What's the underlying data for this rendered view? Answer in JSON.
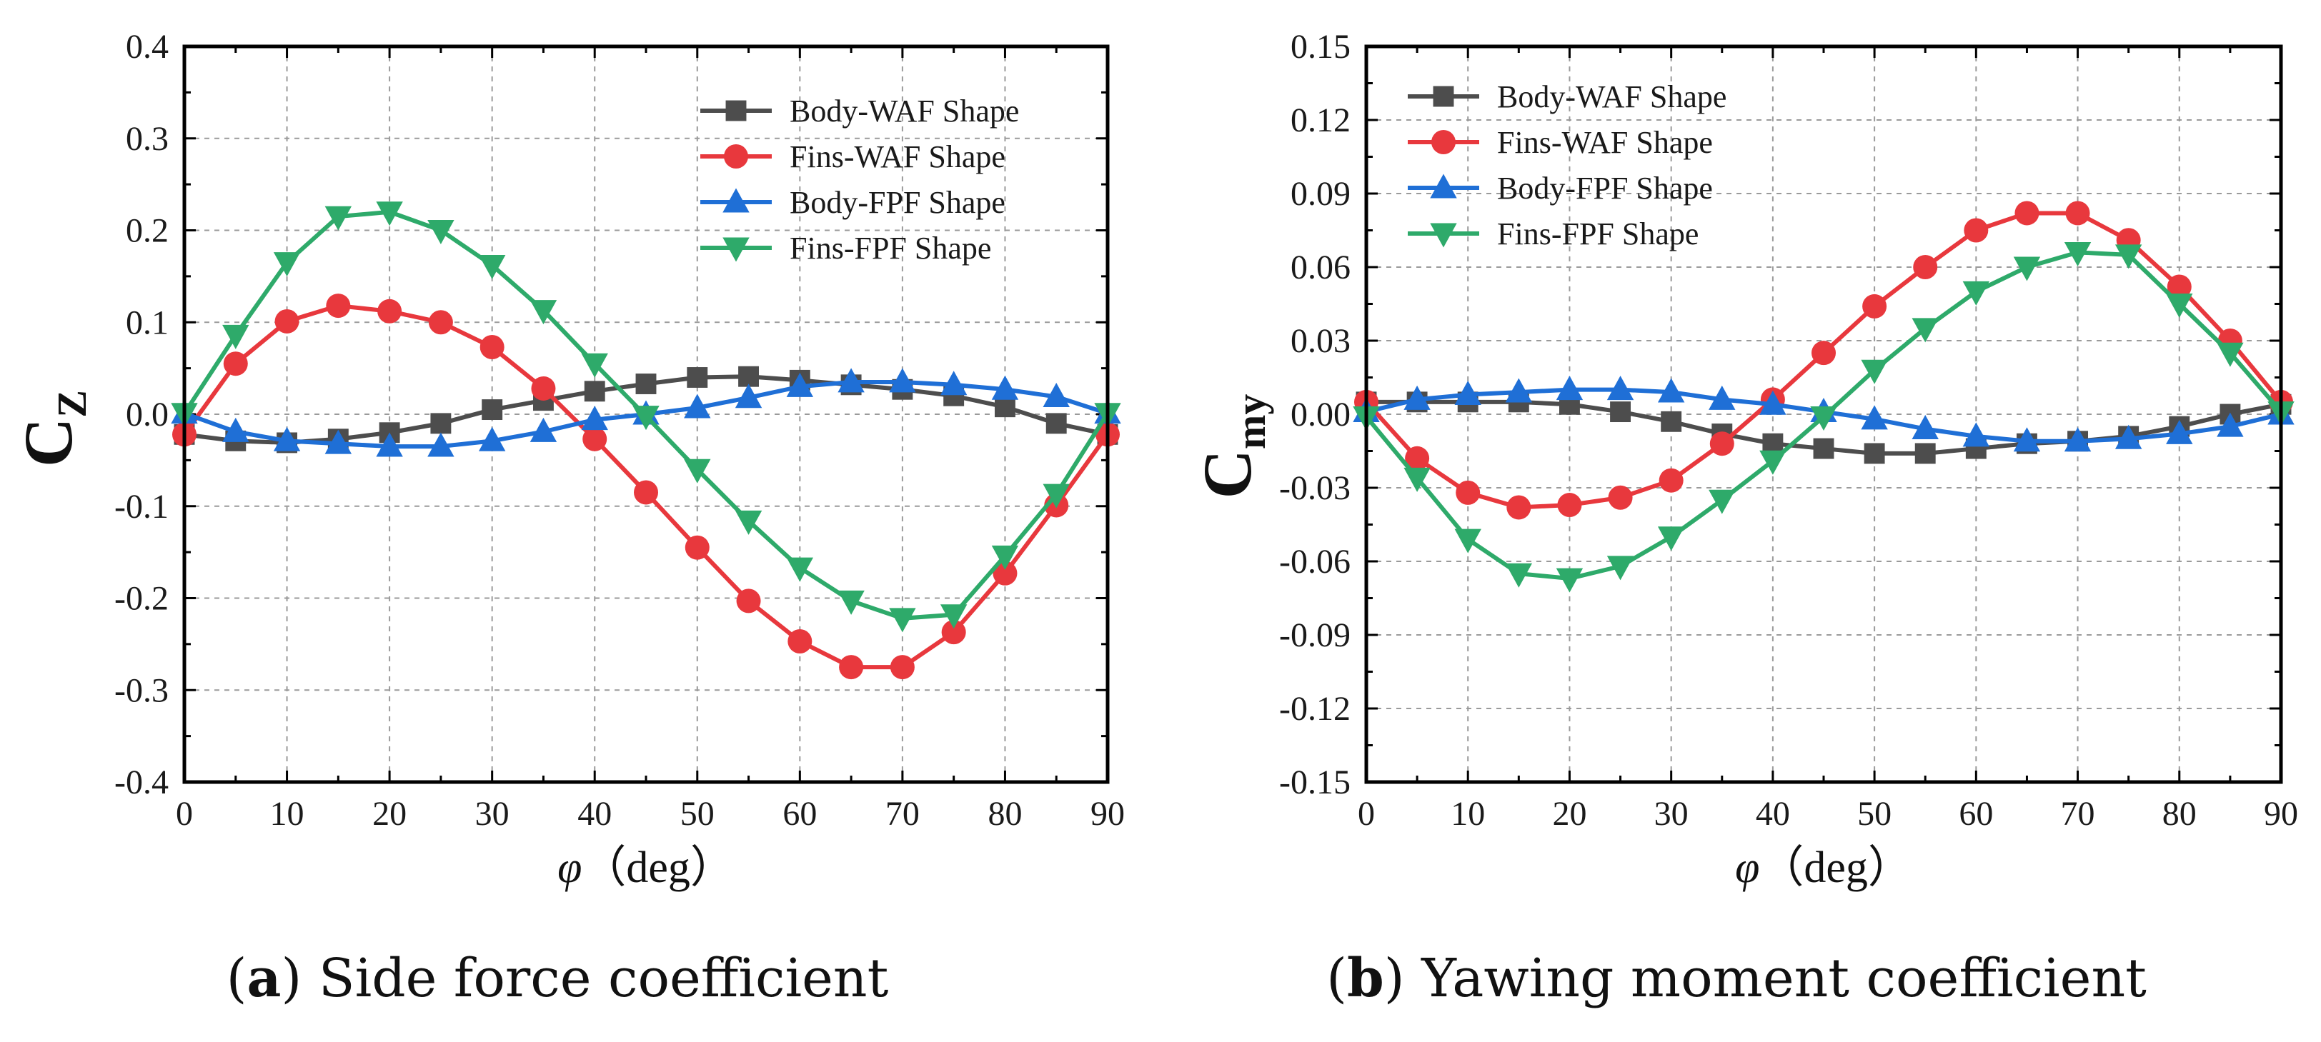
{
  "colors": {
    "body_waf": "#4d4d4d",
    "fins_waf": "#e8383d",
    "body_fpf": "#1f6fd6",
    "fins_fpf": "#2eaa6a",
    "grid": "#9a9a9a",
    "axis": "#000000"
  },
  "captions": [
    {
      "letter": "a",
      "text": " Side force coefficient"
    },
    {
      "letter": "b",
      "text": " Yawing moment coefficient"
    }
  ],
  "chart_data": [
    {
      "type": "line",
      "title": "",
      "xlabel": "φ（deg）",
      "xlabel_symbol": "φ",
      "xlabel_unit": "（deg）",
      "ylabel": "CZ",
      "ylabel_main": "C",
      "ylabel_sub": "Z",
      "xlim": [
        0,
        90
      ],
      "ylim": [
        -0.4,
        0.4
      ],
      "grid": true,
      "legend_position": "top-right",
      "x_ticks": [
        "0",
        "10",
        "20",
        "30",
        "40",
        "50",
        "60",
        "70",
        "80",
        "90"
      ],
      "y_ticks": [
        "-0.4",
        "-0.3",
        "-0.2",
        "-0.1",
        "0.0",
        "0.1",
        "0.2",
        "0.3",
        "0.4"
      ],
      "x": [
        0,
        5,
        10,
        15,
        20,
        25,
        30,
        35,
        40,
        45,
        50,
        55,
        60,
        65,
        70,
        75,
        80,
        85,
        90
      ],
      "series": [
        {
          "name": "Body-WAF Shape",
          "marker": "square",
          "color_key": "body_waf",
          "values": [
            -0.022,
            -0.029,
            -0.031,
            -0.027,
            -0.02,
            -0.01,
            0.005,
            0.015,
            0.025,
            0.033,
            0.04,
            0.041,
            0.037,
            0.032,
            0.027,
            0.02,
            0.008,
            -0.01,
            -0.022
          ]
        },
        {
          "name": "Fins-WAF Shape",
          "marker": "circle",
          "color_key": "fins_waf",
          "values": [
            -0.022,
            0.055,
            0.101,
            0.118,
            0.112,
            0.1,
            0.073,
            0.028,
            -0.027,
            -0.085,
            -0.145,
            -0.203,
            -0.247,
            -0.275,
            -0.275,
            -0.237,
            -0.173,
            -0.099,
            -0.022
          ]
        },
        {
          "name": "Body-FPF Shape",
          "marker": "triangle-up",
          "color_key": "body_fpf",
          "values": [
            0.001,
            -0.019,
            -0.029,
            -0.032,
            -0.035,
            -0.035,
            -0.029,
            -0.019,
            -0.006,
            0.0,
            0.007,
            0.018,
            0.03,
            0.035,
            0.035,
            0.032,
            0.027,
            0.019,
            0.001
          ]
        },
        {
          "name": "Fins-FPF Shape",
          "marker": "triangle-down",
          "color_key": "fins_fpf",
          "values": [
            0.001,
            0.086,
            0.165,
            0.215,
            0.22,
            0.2,
            0.162,
            0.113,
            0.055,
            -0.002,
            -0.06,
            -0.116,
            -0.167,
            -0.203,
            -0.222,
            -0.218,
            -0.154,
            -0.087,
            0.001
          ]
        }
      ]
    },
    {
      "type": "line",
      "title": "",
      "xlabel": "φ（deg）",
      "xlabel_symbol": "φ",
      "xlabel_unit": "（deg）",
      "ylabel": "Cmy",
      "ylabel_main": "C",
      "ylabel_sub": "my",
      "xlim": [
        0,
        90
      ],
      "ylim": [
        -0.15,
        0.15
      ],
      "grid": true,
      "legend_position": "top-left",
      "x_ticks": [
        "0",
        "10",
        "20",
        "30",
        "40",
        "50",
        "60",
        "70",
        "80",
        "90"
      ],
      "y_ticks": [
        "-0.15",
        "-0.12",
        "-0.09",
        "-0.06",
        "-0.03",
        "0.00",
        "0.03",
        "0.06",
        "0.09",
        "0.12",
        "0.15"
      ],
      "x": [
        0,
        5,
        10,
        15,
        20,
        25,
        30,
        35,
        40,
        45,
        50,
        55,
        60,
        65,
        70,
        75,
        80,
        85,
        90
      ],
      "series": [
        {
          "name": "Body-WAF Shape",
          "marker": "square",
          "color_key": "body_waf",
          "values": [
            0.005,
            0.005,
            0.005,
            0.005,
            0.004,
            0.001,
            -0.003,
            -0.008,
            -0.012,
            -0.014,
            -0.016,
            -0.016,
            -0.014,
            -0.012,
            -0.011,
            -0.009,
            -0.005,
            0.0,
            0.004
          ]
        },
        {
          "name": "Fins-WAF Shape",
          "marker": "circle",
          "color_key": "fins_waf",
          "values": [
            0.005,
            -0.018,
            -0.032,
            -0.038,
            -0.037,
            -0.034,
            -0.027,
            -0.012,
            0.006,
            0.025,
            0.044,
            0.06,
            0.075,
            0.082,
            0.082,
            0.071,
            0.052,
            0.03,
            0.005
          ]
        },
        {
          "name": "Body-FPF Shape",
          "marker": "triangle-up",
          "color_key": "body_fpf",
          "values": [
            0.001,
            0.006,
            0.008,
            0.009,
            0.01,
            0.01,
            0.009,
            0.006,
            0.004,
            0.001,
            -0.002,
            -0.006,
            -0.009,
            -0.011,
            -0.011,
            -0.01,
            -0.008,
            -0.005,
            0.0
          ]
        },
        {
          "name": "Fins-FPF Shape",
          "marker": "triangle-down",
          "color_key": "fins_fpf",
          "values": [
            -0.001,
            -0.026,
            -0.051,
            -0.065,
            -0.067,
            -0.062,
            -0.05,
            -0.035,
            -0.019,
            -0.001,
            0.018,
            0.035,
            0.05,
            0.06,
            0.066,
            0.065,
            0.045,
            0.025,
            0.001
          ]
        }
      ]
    }
  ]
}
